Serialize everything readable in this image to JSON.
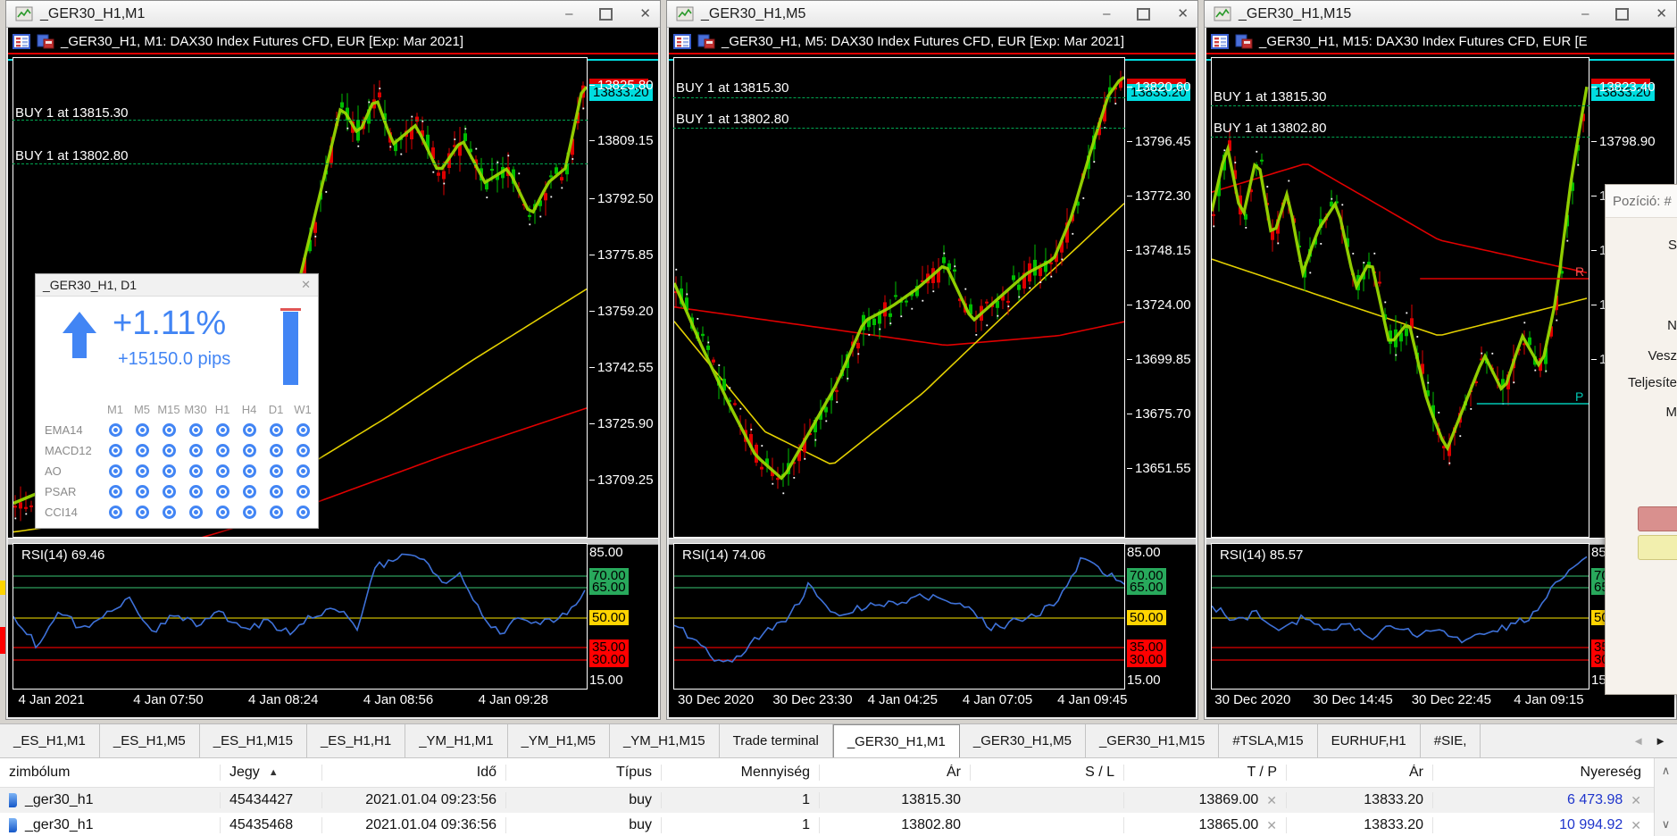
{
  "colors": {
    "accent_blue": "#4285F4",
    "candle_green": "#00BE00",
    "candle_red": "#DE0000",
    "ma_lime": "#98D700",
    "ma_yellow": "#E3D000",
    "ma_red": "#E00000",
    "rsi_blue": "#3E71D8",
    "badge_cyan": "#00DDE0",
    "badge_green": "#28A95C",
    "badge_yellow": "#FFD400",
    "badge_red": "#FF0000",
    "profit_blue": "#1F35CC"
  },
  "window_controls": {
    "minimize": "–",
    "close": "✕"
  },
  "windows": [
    {
      "title": "_GER30_H1,M1",
      "header": "_GER30_H1, M1: DAX30 Index Futures CFD, EUR [Exp: Mar 2021]",
      "buy_labels": [
        "BUY 1 at 13815.30",
        "BUY 1 at 13802.80"
      ],
      "price_badge": "13833.20",
      "price_ticks": [
        "13825.80",
        "13809.15",
        "13792.50",
        "13775.85",
        "13759.20",
        "13742.55",
        "13725.90",
        "13709.25"
      ],
      "rsi_label": "RSI(14) 69.46",
      "time_labels": [
        "4 Jan 2021",
        "4 Jan 07:50",
        "4 Jan 08:24",
        "4 Jan 08:56",
        "4 Jan 09:28"
      ]
    },
    {
      "title": "_GER30_H1,M5",
      "header": "_GER30_H1, M5: DAX30 Index Futures CFD, EUR [Exp: Mar 2021]",
      "buy_labels": [
        "BUY 1 at 13815.30",
        "BUY 1 at 13802.80"
      ],
      "price_badge": "13833.20",
      "price_ticks": [
        "13820.60",
        "13796.45",
        "13772.30",
        "13748.15",
        "13724.00",
        "13699.85",
        "13675.70",
        "13651.55"
      ],
      "rsi_label": "RSI(14) 74.06",
      "time_labels": [
        "30 Dec 2020",
        "30 Dec 23:30",
        "4 Jan 04:25",
        "4 Jan 07:05",
        "4 Jan 09:45"
      ]
    },
    {
      "title": "_GER30_H1,M15",
      "header": "_GER30_H1, M15: DAX30 Index Futures CFD, EUR [E",
      "buy_labels": [
        "BUY 1 at 13815.30",
        "BUY 1 at 13802.80"
      ],
      "price_badge": "13833.20",
      "price_ticks": [
        "13823.40",
        "13798.90",
        "13",
        "13",
        "13",
        "13"
      ],
      "rsi_label": "RSI(14) 85.57",
      "time_labels": [
        "30 Dec 2020",
        "30 Dec 14:45",
        "30 Dec 22:45",
        "4 Jan 09:15"
      ],
      "marks": {
        "resistance": "R",
        "pivot": "P"
      }
    }
  ],
  "rsi_scale": [
    {
      "label": "85.00",
      "type": "plain"
    },
    {
      "label": "70.00",
      "type": "green"
    },
    {
      "label": "65.00",
      "type": "green"
    },
    {
      "label": "50.00",
      "type": "yellow"
    },
    {
      "label": "35.00",
      "type": "red"
    },
    {
      "label": "30.00",
      "type": "red"
    },
    {
      "label": "15.00",
      "type": "plain"
    }
  ],
  "signal_panel": {
    "title": "_GER30_H1, D1",
    "close": "✕",
    "percent": "+1.11%",
    "pips": "+15150.0 pips",
    "timeframes": [
      "M1",
      "M5",
      "M15",
      "M30",
      "H1",
      "H4",
      "D1",
      "W1"
    ],
    "indicators": [
      "EMA14",
      "MACD12",
      "AO",
      "PSAR",
      "CCI14"
    ]
  },
  "position_panel": {
    "title": "Pozíció: #",
    "labels": [
      "S",
      "N",
      "Vesz",
      "Teljesíte",
      "M"
    ]
  },
  "tabs": {
    "items": [
      "_ES_H1,M1",
      "_ES_H1,M5",
      "_ES_H1,M15",
      "_ES_H1,H1",
      "_YM_H1,M1",
      "_YM_H1,M5",
      "_YM_H1,M15",
      "Trade terminal",
      "_GER30_H1,M1",
      "_GER30_H1,M5",
      "_GER30_H1,M15",
      "#TSLA,M15",
      "EURHUF,H1",
      "#SIE,"
    ],
    "active": "_GER30_H1,M1",
    "scroll_left": "◄",
    "scroll_right": "►"
  },
  "table": {
    "headers": {
      "symbol": "zimbólum",
      "ticket": "Jegy",
      "sort": "▲",
      "time": "Idő",
      "type": "Típus",
      "qty": "Mennyiség",
      "price": "Ár",
      "sl": "S / L",
      "tp": "T / P",
      "price2": "Ár",
      "profit": "Nyereség"
    },
    "close_glyph": "✕",
    "scroll_up": "∧",
    "scroll_down": "∨",
    "rows": [
      {
        "symbol": "_ger30_h1",
        "ticket": "45434427",
        "time": "2021.01.04 09:23:56",
        "type": "buy",
        "qty": "1",
        "price": "13815.30",
        "sl": "",
        "tp": "13869.00",
        "price2": "13833.20",
        "profit": "6 473.98"
      },
      {
        "symbol": "_ger30_h1",
        "ticket": "45435468",
        "time": "2021.01.04 09:36:56",
        "type": "buy",
        "qty": "1",
        "price": "13802.80",
        "sl": "",
        "tp": "13865.00",
        "price2": "13833.20",
        "profit": "10 994.92"
      }
    ]
  }
}
